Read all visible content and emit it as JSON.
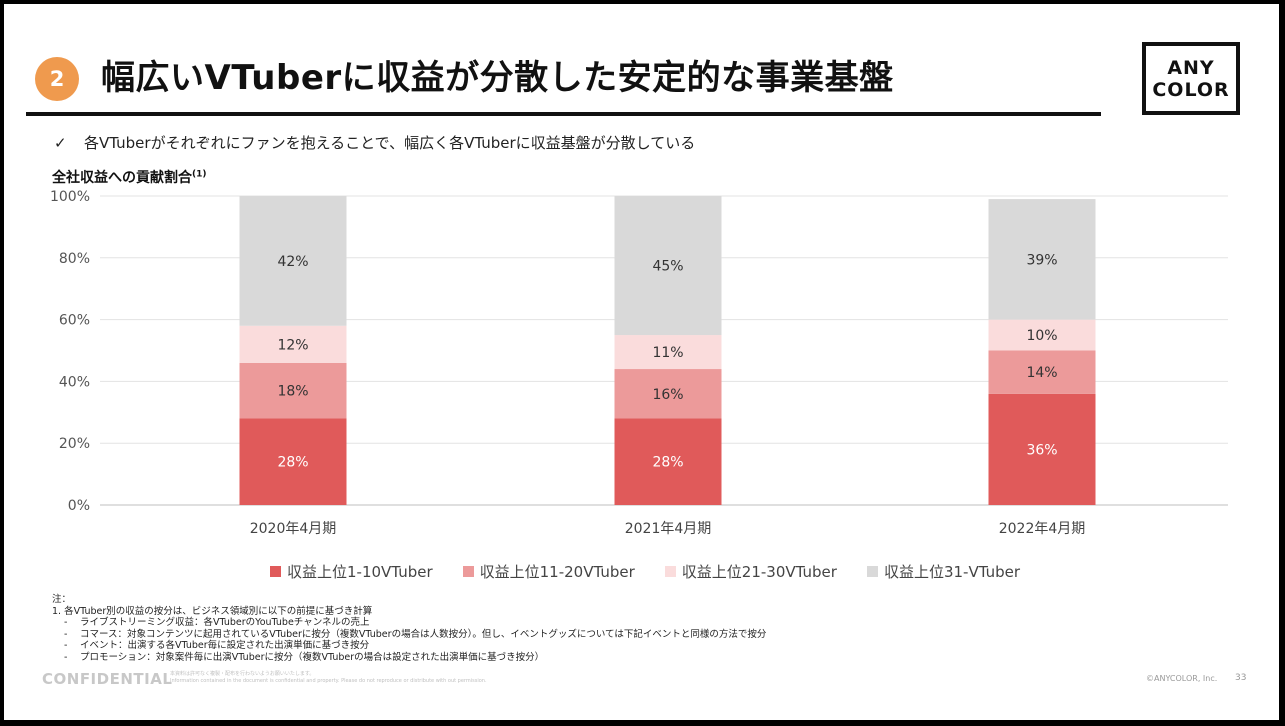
{
  "header": {
    "section_number": "2",
    "title": "幅広いVTuberに収益が分散した安定的な事業基盤",
    "logo_line1": "ANY",
    "logo_line2": "COLOR"
  },
  "bullet": {
    "mark": "✓",
    "text": "各VTuberがそれぞれにファンを抱えることで、幅広く各VTuberに収益基盤が分散している"
  },
  "chart_heading": {
    "text": "全社収益への貢献割合",
    "note_ref": "(1)"
  },
  "chart_data": {
    "type": "bar",
    "stacked": true,
    "categories": [
      "2020年4月期",
      "2021年4月期",
      "2022年4月期"
    ],
    "series": [
      {
        "name": "収益上位1-10VTuber",
        "values": [
          28,
          28,
          36
        ],
        "labels": [
          "28%",
          "28%",
          "36%"
        ],
        "color": "#e05a5a",
        "label_color": "#ffffff"
      },
      {
        "name": "収益上位11-20VTuber",
        "values": [
          18,
          16,
          14
        ],
        "labels": [
          "18%",
          "16%",
          "14%"
        ],
        "color": "#ec9a9a",
        "label_color": "#333333"
      },
      {
        "name": "収益上位21-30VTuber",
        "values": [
          12,
          11,
          10
        ],
        "labels": [
          "12%",
          "11%",
          "10%"
        ],
        "color": "#fadcdc",
        "label_color": "#333333"
      },
      {
        "name": "収益上位31-VTuber",
        "values": [
          42,
          45,
          39
        ],
        "labels": [
          "42%",
          "45%",
          "39%"
        ],
        "color": "#d9d9d9",
        "label_color": "#333333"
      }
    ],
    "ylim": [
      0,
      100
    ],
    "yticks": [
      0,
      20,
      40,
      60,
      80,
      100
    ],
    "ytick_labels": [
      "0%",
      "20%",
      "40%",
      "60%",
      "80%",
      "100%"
    ],
    "grid": true,
    "legend_position": "bottom"
  },
  "notes": {
    "heading": "注：",
    "item1": "1. 各VTuber別の収益の按分は、ビジネス領域別に以下の前提に基づき計算",
    "sub": [
      "ライブストリーミング収益：各VTuberのYouTubeチャンネルの売上",
      "コマース：対象コンテンツに起用されているVTuberに按分（複数VTuberの場合は人数按分）。但し、イベントグッズについては下記イベントと同様の方法で按分",
      "イベント：出演する各VTuber毎に設定された出演単価に基づき按分",
      "プロモーション：対象案件毎に出演VTuberに按分（複数VTuberの場合は設定された出演単価に基づき按分）"
    ],
    "dash": "-"
  },
  "footer": {
    "confidential": "CONFIDENTIAL",
    "small_line1": "本資料は許可なく複製・配布を行わないようお願いいたします。",
    "small_line2": "Information contained in the document is confidential and property. Please do not reproduce or distribute with out permission.",
    "copyright": "©ANYCOLOR, Inc.",
    "page_number": "33"
  }
}
